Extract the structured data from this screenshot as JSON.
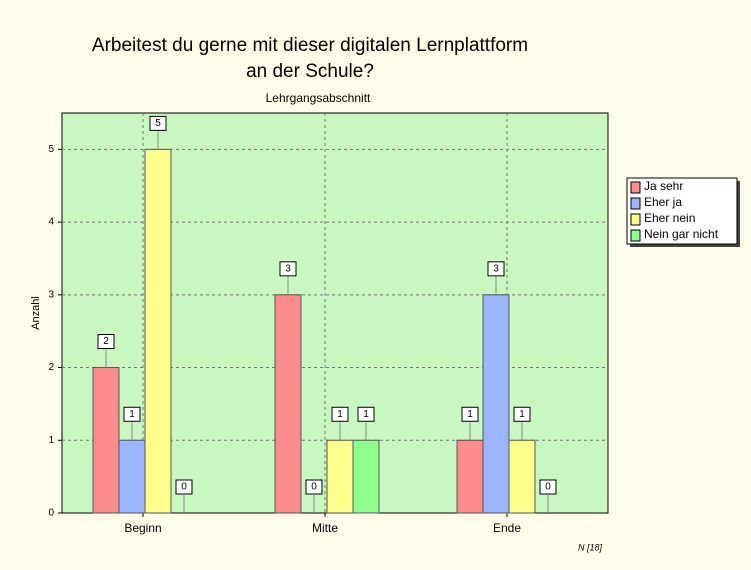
{
  "chart_data": {
    "type": "bar",
    "title": [
      "Arbeitest du gerne mit dieser digitalen Lernplattform",
      "an der Schule?"
    ],
    "subtitle": "Lehrgangsabschnitt",
    "y_label": "Anzahl",
    "note": "N [18]",
    "categories": [
      "Beginn",
      "Mitte",
      "Ende"
    ],
    "series": [
      {
        "name": "Ja sehr",
        "color": "#ff8c8c",
        "values": [
          2,
          3,
          1
        ]
      },
      {
        "name": "Eher ja",
        "color": "#9db4ff",
        "values": [
          1,
          0,
          3
        ]
      },
      {
        "name": "Eher nein",
        "color": "#ffff8c",
        "values": [
          5,
          1,
          1
        ]
      },
      {
        "name": "Nein gar nicht",
        "color": "#8cff8c",
        "values": [
          0,
          1,
          0
        ]
      }
    ],
    "ylim": [
      0,
      5.5
    ],
    "yticks": [
      0,
      1,
      2,
      3,
      4,
      5
    ],
    "grid": true,
    "legend": "right"
  }
}
